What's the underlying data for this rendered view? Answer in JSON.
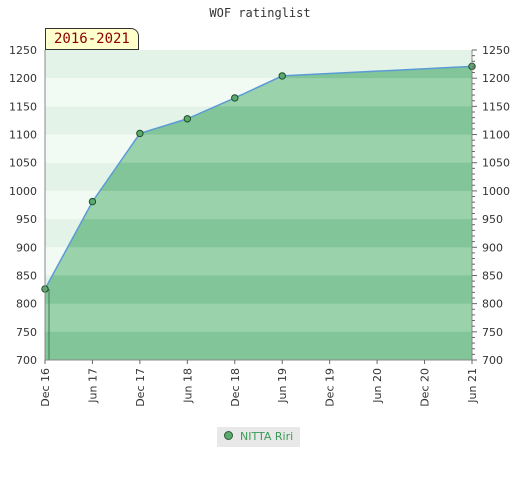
{
  "chart_data": {
    "type": "area",
    "title": "WOF ratinglist",
    "period_badge": "2016-2021",
    "x_ticks": [
      "Dec 16",
      "Jun 17",
      "Dec 17",
      "Jun 18",
      "Dec 18",
      "Jun 19",
      "Dec 19",
      "Jun 20",
      "Dec 20",
      "Jun 21"
    ],
    "y_ticks": [
      700,
      750,
      800,
      850,
      900,
      950,
      1000,
      1050,
      1100,
      1150,
      1200,
      1250
    ],
    "ylim": [
      700,
      1250
    ],
    "series": [
      {
        "name": "NITTA Riri",
        "color": "#5cab6d",
        "points": [
          {
            "x": "Dec 16",
            "y": 826
          },
          {
            "x": "Jun 17",
            "y": 981
          },
          {
            "x": "Dec 17",
            "y": 1102
          },
          {
            "x": "Jun 18",
            "y": 1128
          },
          {
            "x": "Dec 18",
            "y": 1165
          },
          {
            "x": "Jun 19",
            "y": 1204
          },
          {
            "x": "Jun 21",
            "y": 1221
          }
        ]
      }
    ],
    "grid": true,
    "legend_position": "bottom-center",
    "y_axis_both_sides": true
  }
}
